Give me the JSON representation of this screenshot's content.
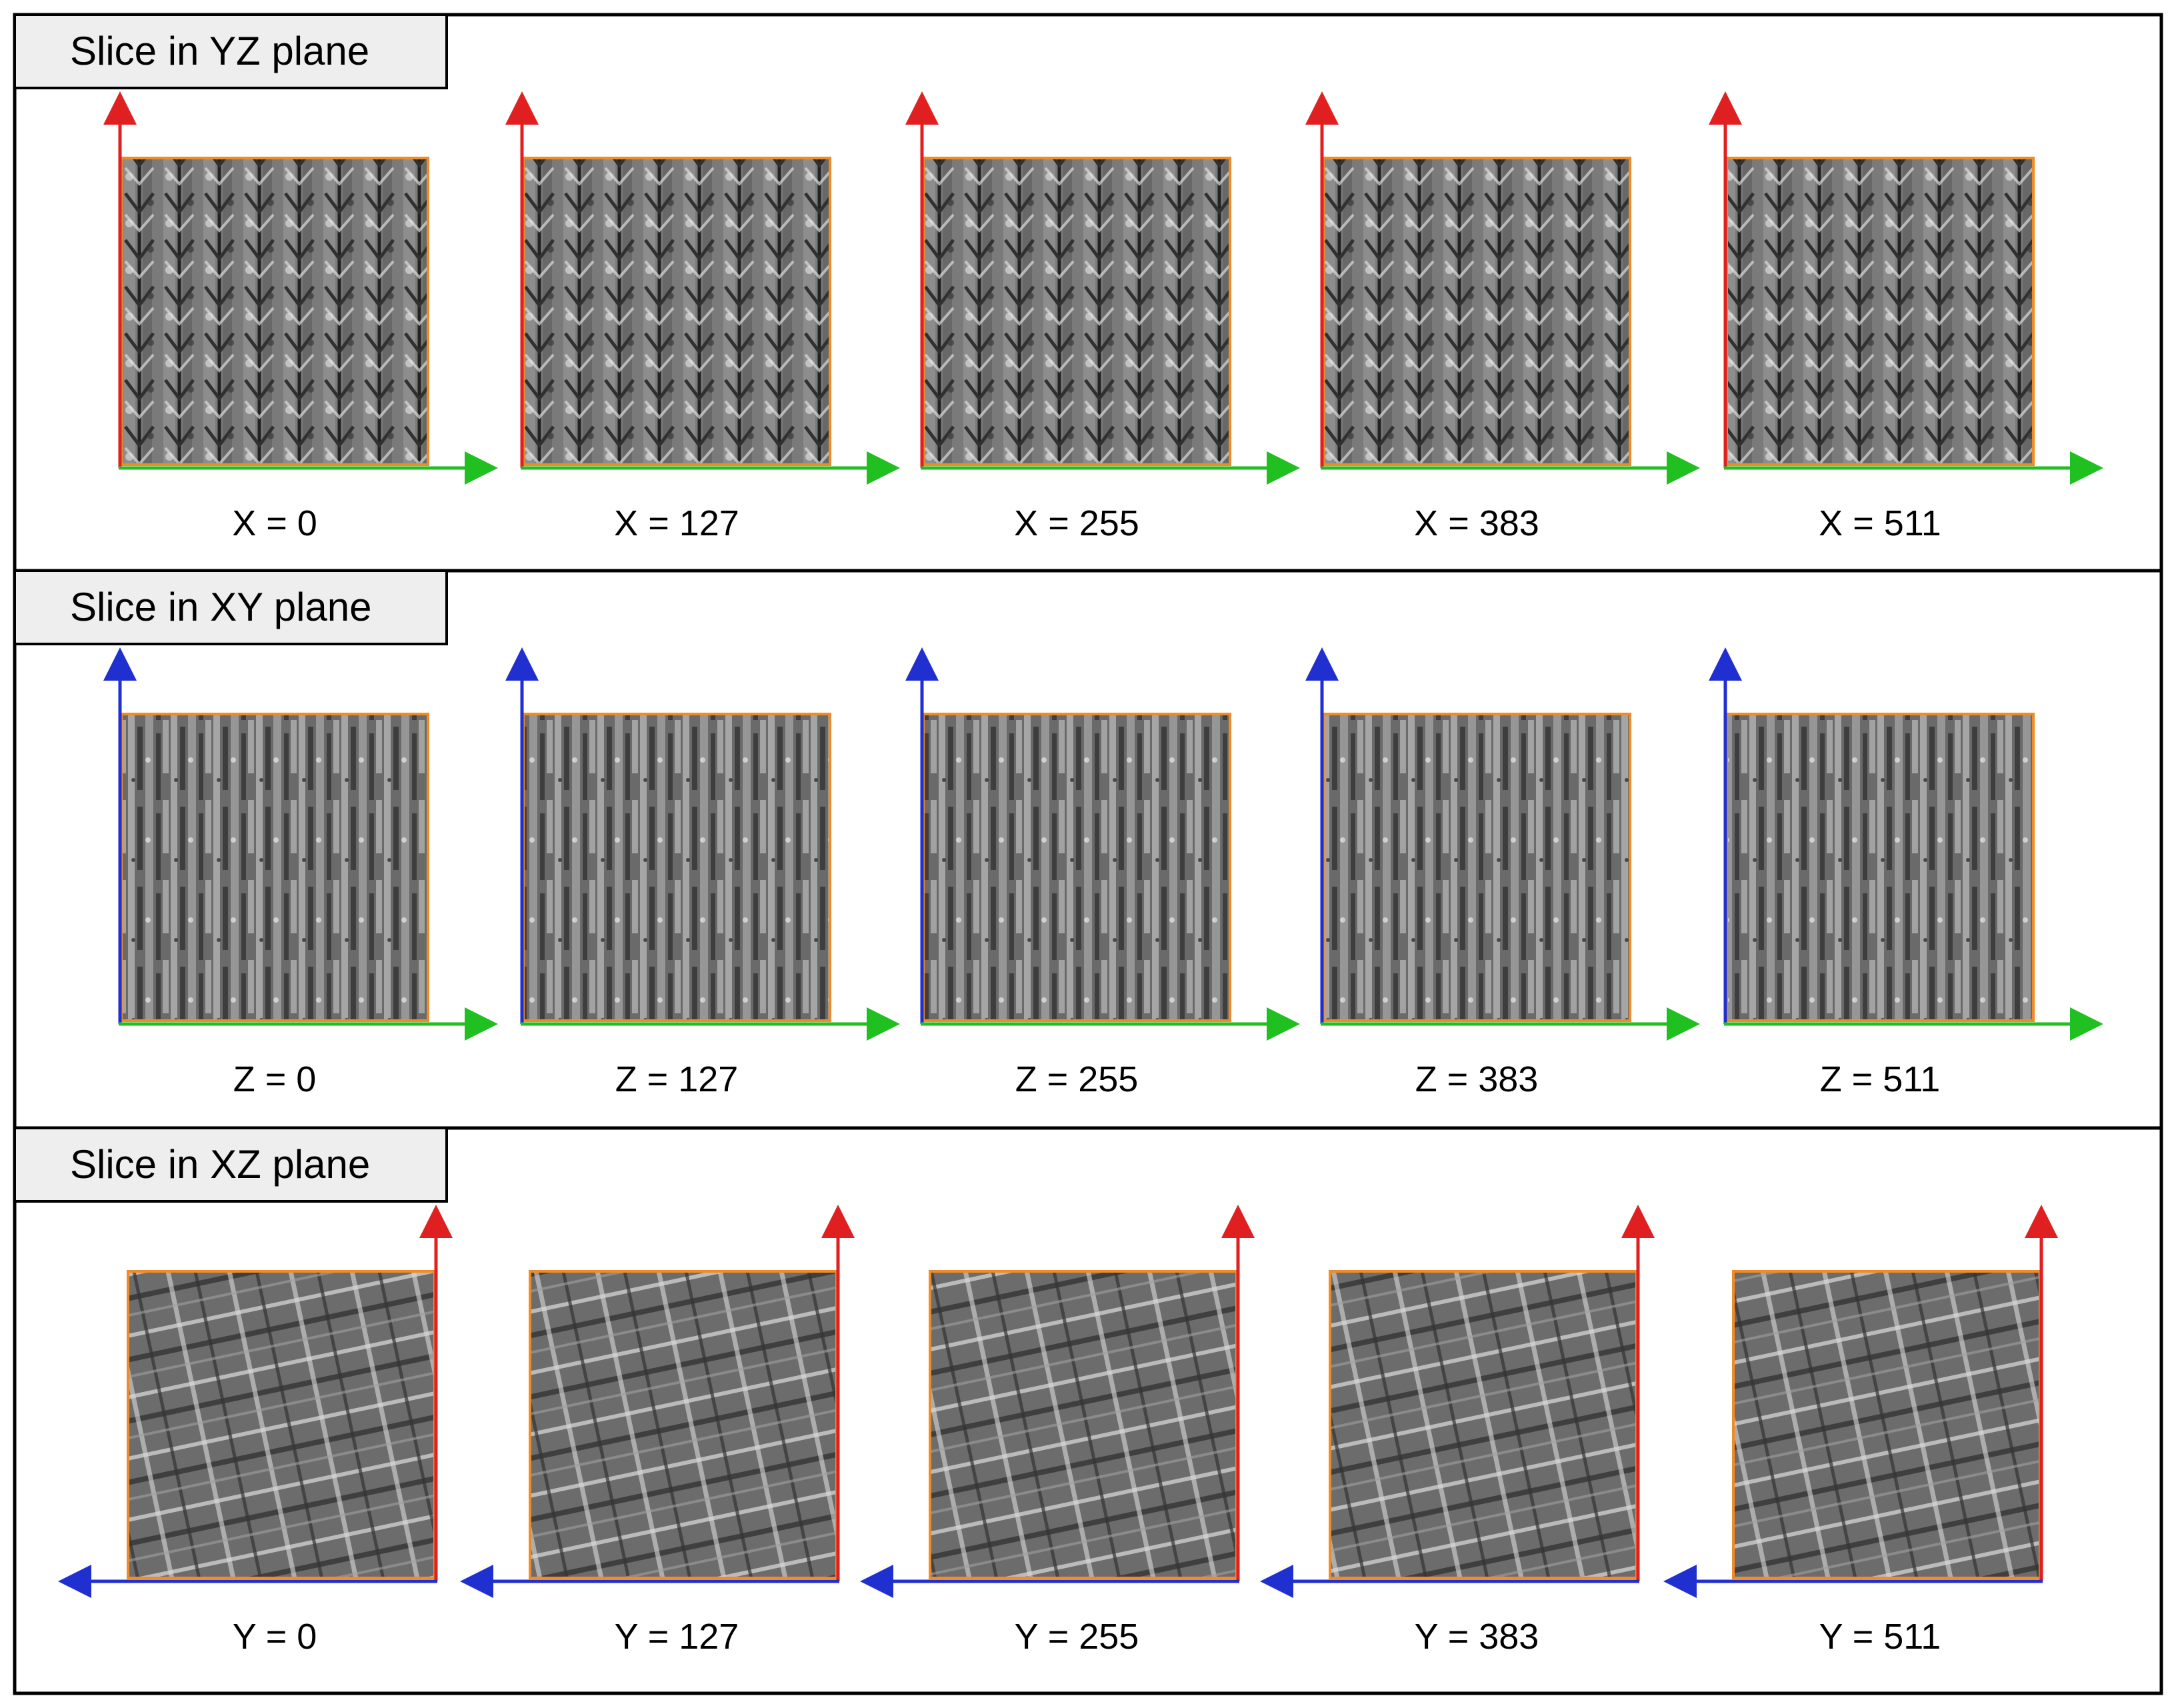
{
  "panels": [
    {
      "title": "Slice in YZ plane",
      "vertical_axis_color": "#e02020",
      "horizontal_axis_color": "#20c020",
      "horizontal_axis_direction": "right",
      "vertical_axis_side": "left",
      "texture": "chevron-vertical-weave",
      "slices": [
        "X = 0",
        "X = 127",
        "X = 255",
        "X = 383",
        "X = 511"
      ]
    },
    {
      "title": "Slice in XY plane",
      "vertical_axis_color": "#2030d0",
      "horizontal_axis_color": "#20c020",
      "horizontal_axis_direction": "right",
      "vertical_axis_side": "left",
      "texture": "vertical-streaks",
      "slices": [
        "Z = 0",
        "Z = 127",
        "Z = 255",
        "Z = 383",
        "Z = 511"
      ]
    },
    {
      "title": "Slice in XZ plane",
      "vertical_axis_color": "#e02020",
      "horizontal_axis_color": "#2030d0",
      "horizontal_axis_direction": "left",
      "vertical_axis_side": "right",
      "texture": "crossed-diagonal-bands",
      "slices": [
        "Y = 0",
        "Y = 127",
        "Y = 255",
        "Y = 383",
        "Y = 511"
      ]
    }
  ],
  "colors": {
    "frame_border": "#000000",
    "title_tab_fill": "#eeeeee",
    "slice_border": "#f08c28",
    "slice_fill": "#6e6e6e"
  }
}
